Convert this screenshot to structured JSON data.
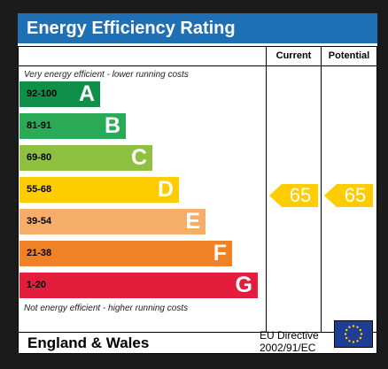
{
  "title": "Energy Efficiency Rating",
  "columns": {
    "current": "Current",
    "potential": "Potential"
  },
  "notes": {
    "top": "Very energy efficient - lower running costs",
    "bottom": "Not energy efficient - higher running costs"
  },
  "bands": [
    {
      "range": "92-100",
      "letter": "A",
      "color": "#0f8f48"
    },
    {
      "range": "81-91",
      "letter": "B",
      "color": "#2aa957"
    },
    {
      "range": "69-80",
      "letter": "C",
      "color": "#8dc13f"
    },
    {
      "range": "55-68",
      "letter": "D",
      "color": "#ffcc00"
    },
    {
      "range": "39-54",
      "letter": "E",
      "color": "#f6ad6a"
    },
    {
      "range": "21-38",
      "letter": "F",
      "color": "#ef8126"
    },
    {
      "range": "1-20",
      "letter": "G",
      "color": "#e31d3c"
    }
  ],
  "ratings": {
    "current": "65",
    "potential": "65",
    "arrow_color": "#ffcc00"
  },
  "footer": {
    "region": "England & Wales",
    "directive_line1": "EU Directive",
    "directive_line2": "2002/91/EC"
  },
  "icons": {
    "flag": "eu-flag-icon"
  }
}
